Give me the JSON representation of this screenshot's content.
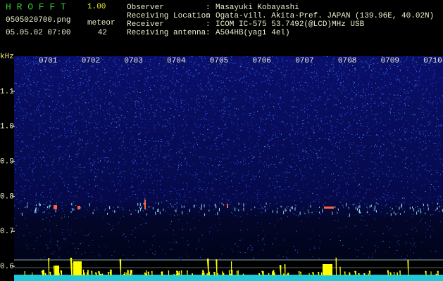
{
  "header": {
    "app": "H R O F F T",
    "version": "1.00",
    "file": "0505020700.png",
    "meteor_label": "meteor",
    "datetime": "05.05.02 07:00",
    "meteor_count": "42"
  },
  "info": {
    "separator": ":",
    "rows": [
      {
        "label": "Observer",
        "value": "Masayuki Kobayashi"
      },
      {
        "label": "Receiving Location",
        "value": "Ogata-vill. Akita-Pref. JAPAN (139.96E, 40.02N)"
      },
      {
        "label": "Receiver",
        "value": "ICOM IC-575 53.7492(@LCD)MHz USB"
      },
      {
        "label": "Receiving antenna",
        "value": "A504HB(yagi 4el)"
      }
    ]
  },
  "axis": {
    "unit": "kHz",
    "freq_labels": [
      "1.1",
      "1.0",
      "0.9",
      "0.8",
      "0.7",
      "0.6"
    ],
    "time_labels": [
      "0701",
      "0702",
      "0703",
      "0704",
      "0705",
      "0706",
      "0707",
      "0708",
      "0709",
      "0710"
    ]
  }
}
